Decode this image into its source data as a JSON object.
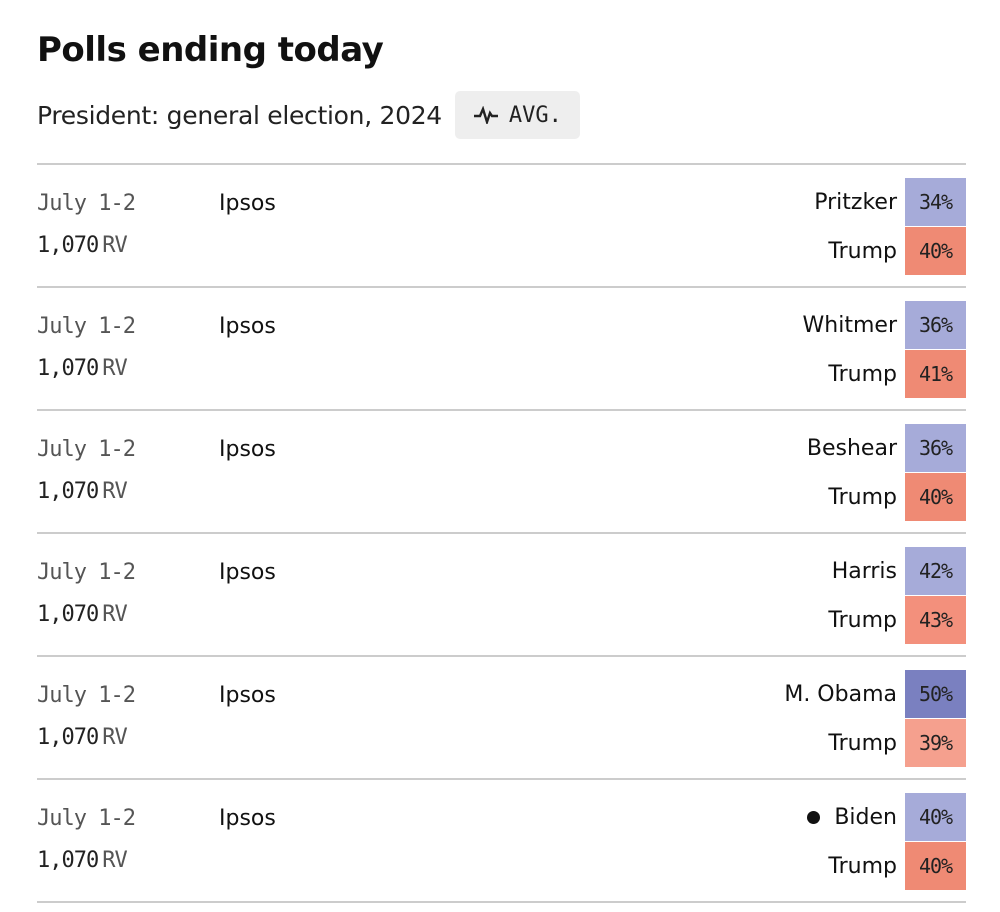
{
  "header": {
    "title": "Polls ending today",
    "race_label": "President: general election, 2024",
    "avg_button_label": "AVG.",
    "avg_icon": "pulse-line-icon"
  },
  "colors": {
    "dem_light": "#a6abd9",
    "dem_dark": "#7a80c0",
    "rep_light": "#f3907c",
    "rep_mid": "#ef8a74",
    "divider": "#cccccc"
  },
  "polls": [
    {
      "dates": "July 1-2",
      "sample_size": "1,070",
      "population": "RV",
      "pollster": "Ipsos",
      "results": [
        {
          "candidate": "Pritzker",
          "pct": "34%",
          "party": "dem",
          "winner": false,
          "color": "#a6abd9"
        },
        {
          "candidate": "Trump",
          "pct": "40%",
          "party": "rep",
          "winner": false,
          "color": "#ef8a74"
        }
      ]
    },
    {
      "dates": "July 1-2",
      "sample_size": "1,070",
      "population": "RV",
      "pollster": "Ipsos",
      "results": [
        {
          "candidate": "Whitmer",
          "pct": "36%",
          "party": "dem",
          "winner": false,
          "color": "#a6abd9"
        },
        {
          "candidate": "Trump",
          "pct": "41%",
          "party": "rep",
          "winner": false,
          "color": "#ef8a74"
        }
      ]
    },
    {
      "dates": "July 1-2",
      "sample_size": "1,070",
      "population": "RV",
      "pollster": "Ipsos",
      "results": [
        {
          "candidate": "Beshear",
          "pct": "36%",
          "party": "dem",
          "winner": false,
          "color": "#a6abd9"
        },
        {
          "candidate": "Trump",
          "pct": "40%",
          "party": "rep",
          "winner": false,
          "color": "#ef8a74"
        }
      ]
    },
    {
      "dates": "July 1-2",
      "sample_size": "1,070",
      "population": "RV",
      "pollster": "Ipsos",
      "results": [
        {
          "candidate": "Harris",
          "pct": "42%",
          "party": "dem",
          "winner": false,
          "color": "#a6abd9"
        },
        {
          "candidate": "Trump",
          "pct": "43%",
          "party": "rep",
          "winner": false,
          "color": "#f3907c"
        }
      ]
    },
    {
      "dates": "July 1-2",
      "sample_size": "1,070",
      "population": "RV",
      "pollster": "Ipsos",
      "results": [
        {
          "candidate": "M. Obama",
          "pct": "50%",
          "party": "dem",
          "winner": false,
          "color": "#7a80c0"
        },
        {
          "candidate": "Trump",
          "pct": "39%",
          "party": "rep",
          "winner": false,
          "color": "#f5a08e"
        }
      ]
    },
    {
      "dates": "July 1-2",
      "sample_size": "1,070",
      "population": "RV",
      "pollster": "Ipsos",
      "results": [
        {
          "candidate": "Biden",
          "pct": "40%",
          "party": "dem",
          "winner": true,
          "color": "#a6abd9"
        },
        {
          "candidate": "Trump",
          "pct": "40%",
          "party": "rep",
          "winner": false,
          "color": "#ef8a74"
        }
      ]
    }
  ]
}
